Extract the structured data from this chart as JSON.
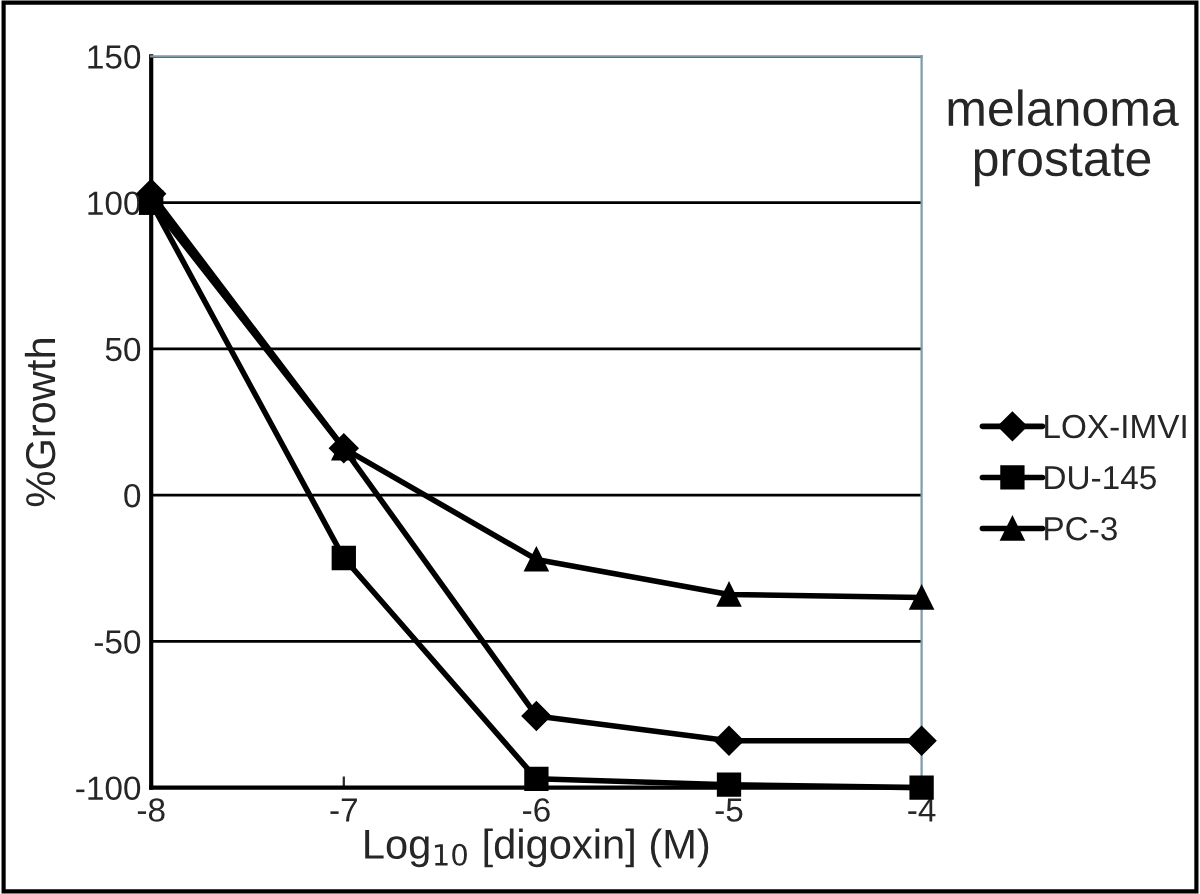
{
  "chart_data": {
    "type": "line",
    "xlabel": "Log$_{10}$ [digoxin] (M)",
    "ylabel": "%Growth",
    "annotations": [
      "melanoma\nprostate"
    ],
    "x": [
      -8,
      -7,
      -6,
      -5,
      -4
    ],
    "xlim": [
      -8,
      -4
    ],
    "xticks": [
      -8,
      -7,
      -6,
      -5,
      -4
    ],
    "ylim": [
      -100,
      150
    ],
    "yticks": [
      -100,
      -50,
      0,
      50,
      100,
      150
    ],
    "grid": "y",
    "legend": "right",
    "series": [
      {
        "name": "LOX-IMVI",
        "color": "#000000",
        "marker": "diamond",
        "values": [
          103,
          16,
          -75.5,
          -84,
          -84
        ]
      },
      {
        "name": "DU-145",
        "color": "#000000",
        "marker": "square",
        "values": [
          100,
          -21.5,
          -97,
          -99,
          -100
        ]
      },
      {
        "name": "PC-3",
        "color": "#000000",
        "marker": "triangle",
        "values": [
          100,
          16,
          -22,
          -34,
          -35
        ]
      }
    ]
  }
}
